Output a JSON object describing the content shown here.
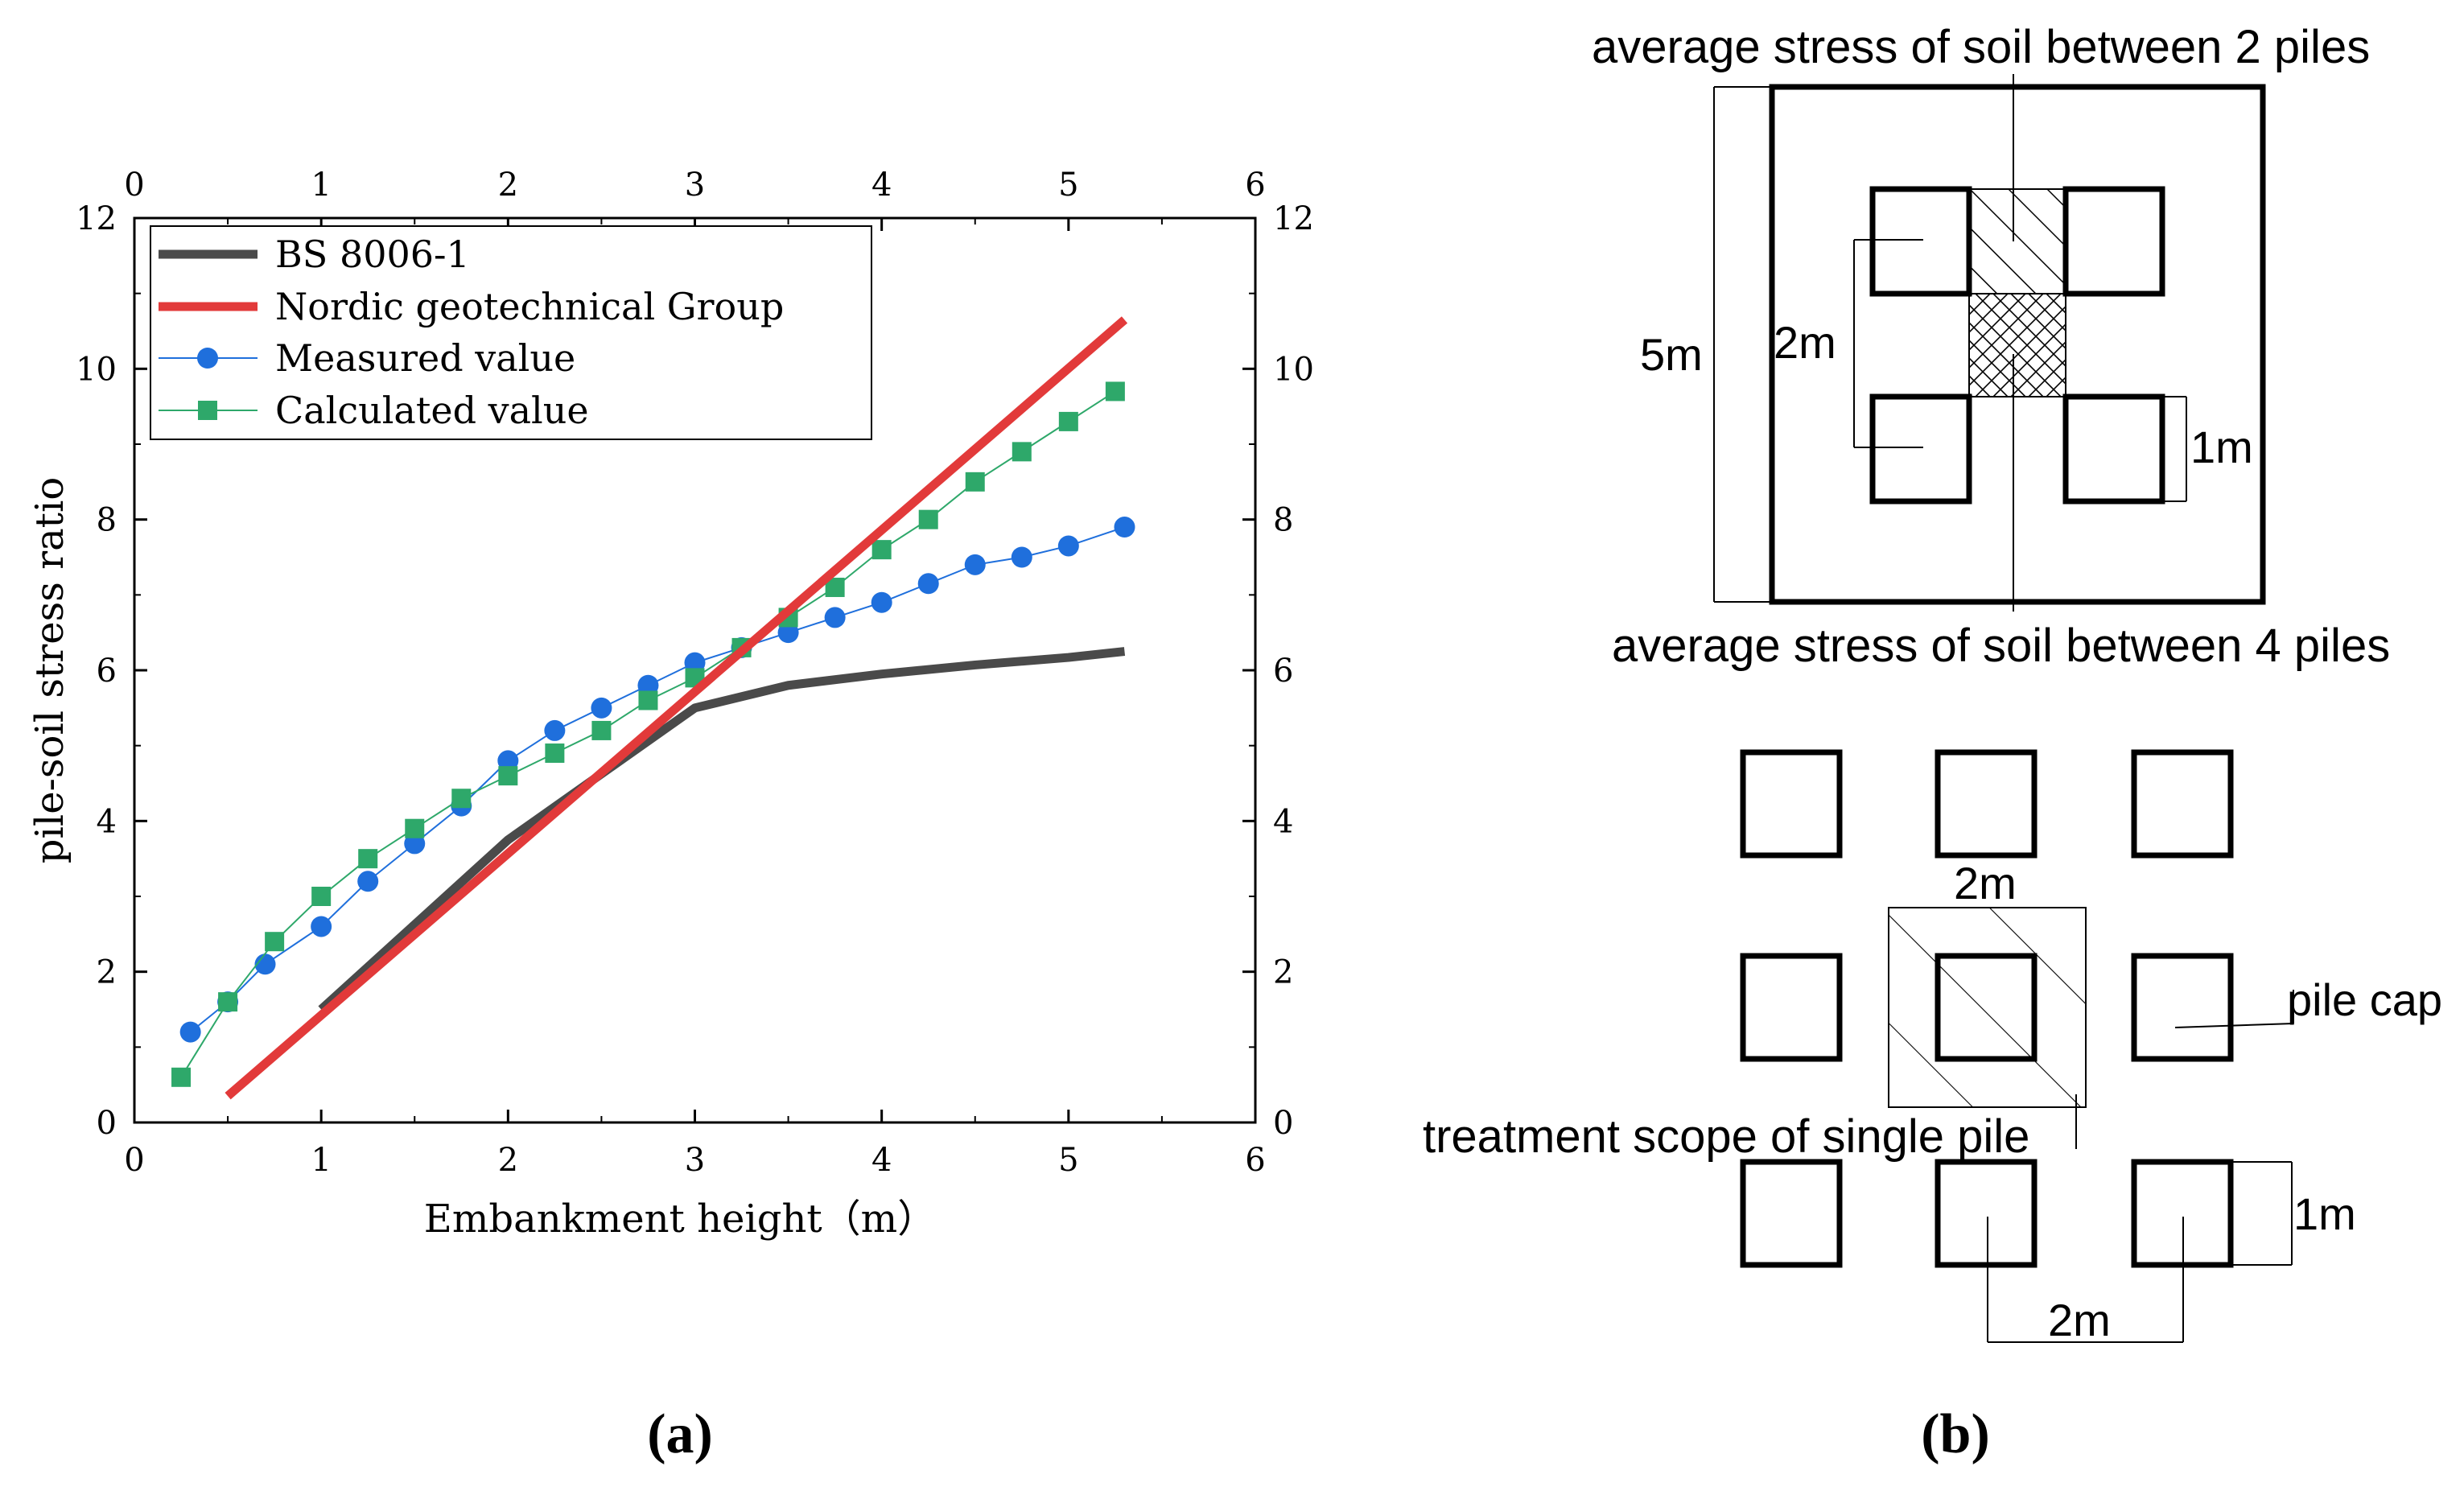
{
  "chart_data": {
    "type": "line",
    "xlabel": "Embankment height（m）",
    "ylabel": "pile-soil stress ratio",
    "xlim": [
      0,
      6
    ],
    "ylim": [
      0,
      12
    ],
    "x_ticks": [
      0,
      1,
      2,
      3,
      4,
      5,
      6
    ],
    "y_ticks": [
      0,
      2,
      4,
      6,
      8,
      10,
      12
    ],
    "legend_position": "top-left",
    "series": [
      {
        "name": "BS 8006-1",
        "color": "#4a4a4a",
        "marker": "none",
        "x": [
          1.0,
          2.0,
          3.0,
          3.5,
          4.0,
          4.5,
          5.0,
          5.3
        ],
        "y": [
          1.5,
          3.75,
          5.5,
          5.8,
          5.95,
          6.07,
          6.17,
          6.25
        ]
      },
      {
        "name": "Nordic geotechnical Group",
        "color": "#e23a3a",
        "marker": "none",
        "x": [
          0.5,
          5.3
        ],
        "y": [
          0.35,
          10.65
        ]
      },
      {
        "name": "Measured value",
        "color": "#1f6fdc",
        "marker": "circle",
        "x": [
          0.3,
          0.5,
          0.7,
          1.0,
          1.25,
          1.5,
          1.75,
          2.0,
          2.25,
          2.5,
          2.75,
          3.0,
          3.25,
          3.5,
          3.75,
          4.0,
          4.25,
          4.5,
          4.75,
          5.0,
          5.3
        ],
        "y": [
          1.2,
          1.6,
          2.1,
          2.6,
          3.2,
          3.7,
          4.2,
          4.8,
          5.2,
          5.5,
          5.8,
          6.1,
          6.3,
          6.5,
          6.7,
          6.9,
          7.15,
          7.4,
          7.5,
          7.65,
          7.9
        ]
      },
      {
        "name": "Calculated value",
        "color": "#2ea86a",
        "marker": "square",
        "x": [
          0.25,
          0.5,
          0.75,
          1.0,
          1.25,
          1.5,
          1.75,
          2.0,
          2.25,
          2.5,
          2.75,
          3.0,
          3.25,
          3.5,
          3.75,
          4.0,
          4.25,
          4.5,
          4.75,
          5.0,
          5.25
        ],
        "y": [
          0.6,
          1.6,
          2.4,
          3.0,
          3.5,
          3.9,
          4.3,
          4.6,
          4.9,
          5.2,
          5.6,
          5.9,
          6.3,
          6.7,
          7.1,
          7.6,
          8.0,
          8.5,
          8.9,
          9.3,
          9.7
        ]
      }
    ]
  },
  "captions": {
    "a": "(a)",
    "b": "(b)"
  },
  "diagram": {
    "label_2piles": "average stress of soil between 2 piles",
    "label_4piles": "average stress of soil between 4 piles",
    "dim_5m": "5m",
    "dim_2m_vertical": "2m",
    "dim_1m_top": "1m",
    "dim_2m_top_grid": "2m",
    "label_pile_cap": "pile cap",
    "label_treatment": "treatment scope of single pile",
    "dim_1m_bottom": "1m",
    "dim_2m_bottom": "2m"
  }
}
